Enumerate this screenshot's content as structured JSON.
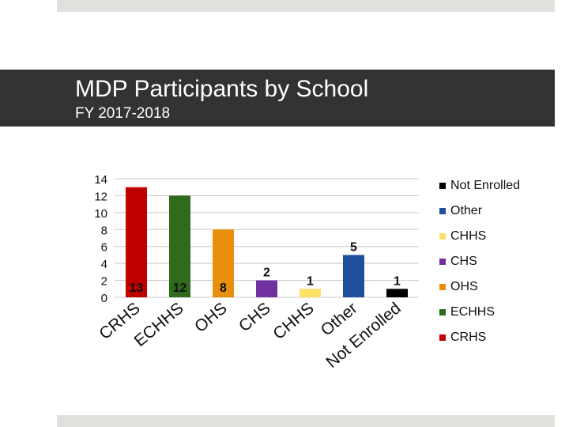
{
  "header": {
    "title": "MDP Participants by School",
    "subtitle": "FY 2017-2018"
  },
  "chart_data": {
    "type": "bar",
    "categories": [
      "CRHS",
      "ECHHS",
      "OHS",
      "CHS",
      "CHHS",
      "Other",
      "Not Enrolled"
    ],
    "values": [
      13,
      12,
      8,
      2,
      1,
      5,
      1
    ],
    "data_labels": [
      "13",
      "12",
      "8",
      "2",
      "1",
      "5",
      "1"
    ],
    "colors": [
      "#c00000",
      "#2e6b1a",
      "#e8900c",
      "#7030a0",
      "#ffe066",
      "#1f4e9c",
      "#000000"
    ],
    "ylim": [
      0,
      14
    ],
    "yticks": [
      0,
      2,
      4,
      6,
      8,
      10,
      12,
      14
    ],
    "grid": true,
    "legend_position": "right",
    "legend": [
      {
        "label": "Not Enrolled",
        "color": "#000000"
      },
      {
        "label": "Other",
        "color": "#1f4e9c"
      },
      {
        "label": "CHHS",
        "color": "#ffe066"
      },
      {
        "label": "CHS",
        "color": "#7030a0"
      },
      {
        "label": "OHS",
        "color": "#e8900c"
      },
      {
        "label": "ECHHS",
        "color": "#2e6b1a"
      },
      {
        "label": "CRHS",
        "color": "#c00000"
      }
    ]
  }
}
